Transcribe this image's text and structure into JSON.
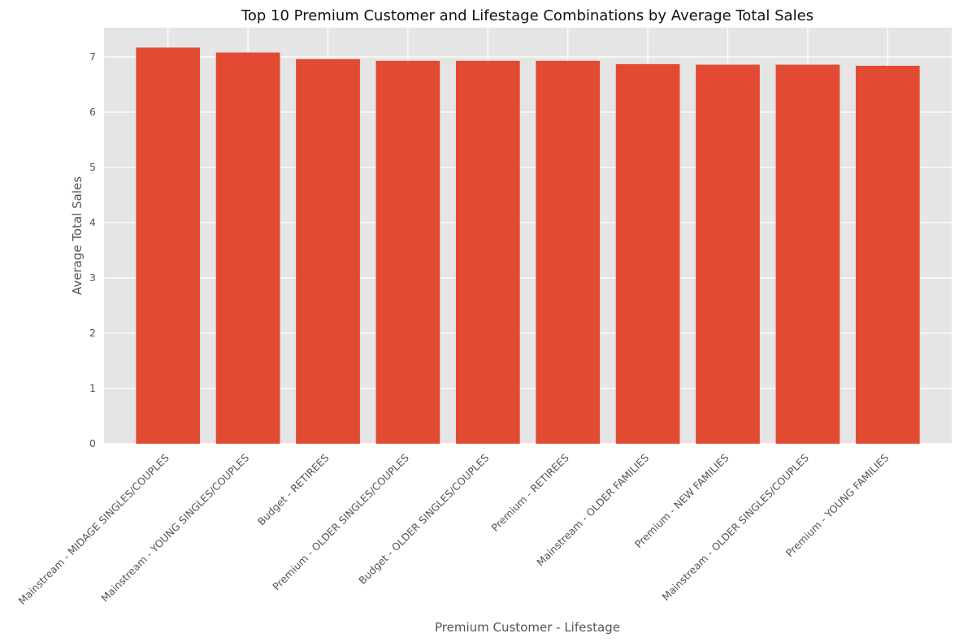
{
  "chart_data": {
    "type": "bar",
    "title": "Top 10 Premium Customer and Lifestage Combinations by Average Total Sales",
    "xlabel": "Premium Customer - Lifestage",
    "ylabel": "Average Total Sales",
    "categories": [
      "Mainstream - MIDAGE SINGLES/COUPLES",
      "Mainstream - YOUNG SINGLES/COUPLES",
      "Budget - RETIREES",
      "Premium - OLDER SINGLES/COUPLES",
      "Budget - OLDER SINGLES/COUPLES",
      "Premium - RETIREES",
      "Mainstream - OLDER FAMILIES",
      "Premium - NEW FAMILIES",
      "Mainstream - OLDER SINGLES/COUPLES",
      "Premium - YOUNG FAMILIES"
    ],
    "values": [
      7.17,
      7.08,
      6.96,
      6.93,
      6.93,
      6.93,
      6.87,
      6.86,
      6.86,
      6.84
    ],
    "ylim": [
      0,
      7.53
    ],
    "yticks": [
      0,
      1,
      2,
      3,
      4,
      5,
      6,
      7
    ],
    "grid": true,
    "colors": {
      "bar": "#e24a33",
      "plot_background": "#e5e5e5",
      "grid": "#ffffff"
    }
  }
}
